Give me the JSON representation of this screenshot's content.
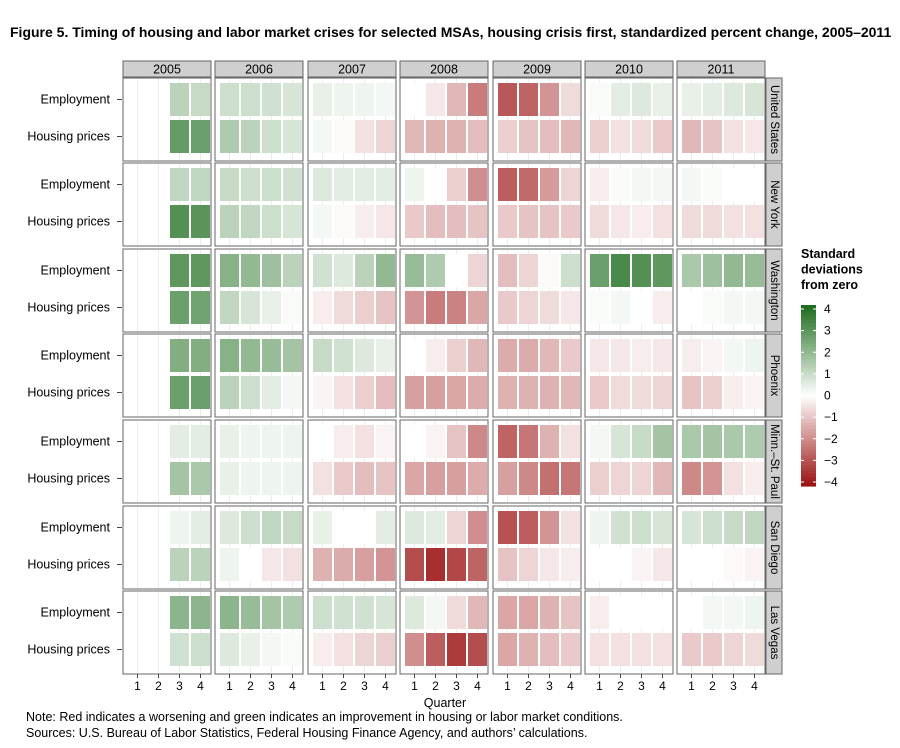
{
  "chart_data": {
    "type": "heatmap",
    "title": "Figure 5. Timing of housing and labor market crises for selected MSAs, housing crisis first, standardized percent change, 2005–2011",
    "xlabel": "Quarter",
    "years": [
      "2005",
      "2006",
      "2007",
      "2008",
      "2009",
      "2010",
      "2011"
    ],
    "quarters": [
      "1",
      "2",
      "3",
      "4"
    ],
    "rows": [
      "Employment",
      "Housing prices"
    ],
    "msas": [
      "United States",
      "New York",
      "Washington",
      "Phoenix",
      "Minn.–St. Paul",
      "San Diego",
      "Las Vegas"
    ],
    "legend": {
      "title_lines": [
        "Standard",
        "deviations",
        "from zero"
      ],
      "ticks": [
        "4",
        "3",
        "2",
        "1",
        "0",
        "−1",
        "−2",
        "−3",
        "−4"
      ],
      "range": [
        -4,
        4
      ],
      "colors": {
        "low": "#9b1111",
        "mid": "#ffffff",
        "high": "#1b6b1b"
      }
    },
    "data": {
      "United States": {
        "Employment": [
          null,
          null,
          1.2,
          1.0,
          0.9,
          0.9,
          0.8,
          0.7,
          0.4,
          0.3,
          0.3,
          0.2,
          0.0,
          -0.4,
          -1.2,
          -2.2,
          -2.8,
          -2.6,
          -1.8,
          -0.6,
          0.1,
          0.5,
          0.6,
          0.4,
          0.4,
          0.5,
          0.6,
          0.7
        ],
        "Housing prices": [
          null,
          null,
          2.7,
          2.6,
          1.4,
          1.2,
          0.9,
          0.7,
          0.2,
          -0.1,
          -0.5,
          -0.7,
          -1.2,
          -1.3,
          -1.3,
          -1.1,
          -0.8,
          -1.0,
          -1.1,
          -1.2,
          -0.8,
          -0.5,
          -0.6,
          -0.9,
          -1.2,
          -1.0,
          -0.5,
          -0.4
        ]
      },
      "New York": {
        "Employment": [
          null,
          null,
          1.1,
          1.1,
          1.0,
          0.9,
          0.9,
          0.8,
          0.6,
          0.5,
          0.5,
          0.5,
          0.3,
          0.0,
          -0.8,
          -1.9,
          -2.7,
          -2.5,
          -1.7,
          -0.7,
          -0.3,
          0.1,
          0.2,
          0.2,
          0.2,
          0.1,
          0.0,
          0.0
        ],
        "Housing prices": [
          null,
          null,
          3.0,
          2.9,
          1.2,
          1.1,
          0.9,
          0.7,
          0.2,
          -0.1,
          -0.3,
          -0.4,
          -0.9,
          -1.1,
          -1.1,
          -1.0,
          -0.9,
          -1.0,
          -1.0,
          -0.9,
          -0.6,
          -0.4,
          -0.3,
          -0.5,
          -0.6,
          -0.6,
          -0.5,
          -0.5
        ]
      },
      "Washington": {
        "Employment": [
          null,
          null,
          2.8,
          2.8,
          2.1,
          1.9,
          1.7,
          1.2,
          0.8,
          0.6,
          1.2,
          1.9,
          1.8,
          1.4,
          0.0,
          -0.7,
          -1.1,
          -0.7,
          -0.1,
          0.9,
          2.6,
          3.2,
          3.0,
          2.8,
          1.5,
          1.7,
          1.9,
          1.8
        ],
        "Housing prices": [
          null,
          null,
          2.6,
          2.5,
          1.1,
          0.7,
          0.4,
          0.1,
          -0.3,
          -0.6,
          -0.8,
          -1.0,
          -1.8,
          -2.2,
          -2.1,
          -1.5,
          -0.9,
          -0.7,
          -0.6,
          -0.4,
          0.1,
          0.2,
          0.0,
          -0.3,
          0.0,
          0.1,
          0.2,
          0.2
        ]
      },
      "Phoenix": {
        "Employment": [
          null,
          null,
          2.2,
          2.2,
          2.1,
          1.9,
          1.8,
          1.6,
          1.0,
          0.8,
          0.6,
          0.4,
          0.0,
          -0.3,
          -0.8,
          -1.2,
          -1.4,
          -1.4,
          -1.2,
          -0.9,
          -0.4,
          -0.4,
          -0.3,
          -0.4,
          -0.3,
          -0.2,
          0.2,
          0.3
        ],
        "Housing prices": [
          null,
          null,
          2.6,
          2.6,
          1.2,
          0.9,
          0.5,
          0.2,
          -0.2,
          -0.5,
          -0.8,
          -1.1,
          -1.6,
          -1.6,
          -1.5,
          -1.4,
          -1.3,
          -1.3,
          -1.3,
          -1.2,
          -0.9,
          -0.6,
          -0.6,
          -0.7,
          -1.0,
          -0.8,
          -0.3,
          -0.2
        ]
      },
      "Minn.–St. Paul": {
        "Employment": [
          null,
          null,
          0.5,
          0.5,
          0.4,
          0.3,
          0.3,
          0.3,
          0.0,
          -0.3,
          -0.5,
          -0.2,
          0.0,
          -0.2,
          -1.0,
          -2.0,
          -2.6,
          -2.3,
          -1.3,
          -0.5,
          0.2,
          0.7,
          1.0,
          1.6,
          1.5,
          1.6,
          1.5,
          1.4
        ],
        "Housing prices": [
          null,
          null,
          1.6,
          1.5,
          0.4,
          0.3,
          0.3,
          0.3,
          -0.5,
          -0.9,
          -1.1,
          -1.0,
          -1.5,
          -1.6,
          -1.6,
          -1.4,
          -1.6,
          -2.0,
          -2.4,
          -2.3,
          -0.8,
          -0.7,
          -0.7,
          -1.2,
          -2.0,
          -1.8,
          -0.5,
          -0.3
        ]
      },
      "San Diego": {
        "Employment": [
          null,
          null,
          0.3,
          0.5,
          0.6,
          0.9,
          1.1,
          1.0,
          0.4,
          0.0,
          0.0,
          0.5,
          0.6,
          0.5,
          -0.7,
          -1.9,
          -2.9,
          -2.7,
          -1.8,
          -0.5,
          0.3,
          0.8,
          0.9,
          0.7,
          0.7,
          0.9,
          1.0,
          1.1
        ],
        "Housing prices": [
          null,
          null,
          1.2,
          1.2,
          0.3,
          0.0,
          -0.4,
          -0.5,
          -1.3,
          -1.4,
          -1.6,
          -1.8,
          -3.0,
          -3.5,
          -3.1,
          -2.6,
          -1.0,
          -0.7,
          -0.4,
          -0.3,
          0.0,
          0.0,
          -0.2,
          -0.4,
          0.0,
          0.0,
          -0.1,
          -0.2
        ]
      },
      "Las Vegas": {
        "Employment": [
          null,
          null,
          2.0,
          2.0,
          2.0,
          1.8,
          1.6,
          1.4,
          0.9,
          0.8,
          0.8,
          0.7,
          0.6,
          0.2,
          -0.6,
          -1.2,
          -1.5,
          -1.5,
          -1.3,
          -1.0,
          -0.3,
          0.0,
          0.0,
          0.0,
          0.0,
          0.2,
          0.2,
          0.3
        ],
        "Housing prices": [
          null,
          null,
          0.8,
          0.9,
          0.6,
          0.4,
          0.2,
          0.1,
          -0.3,
          -0.5,
          -0.7,
          -0.8,
          -1.9,
          -2.7,
          -3.3,
          -3.0,
          -1.5,
          -1.3,
          -1.1,
          -0.9,
          -0.5,
          -0.5,
          -0.5,
          -0.5,
          -0.9,
          -0.9,
          -0.7,
          -0.6
        ]
      }
    }
  },
  "notes": {
    "note": "Note:  Red indicates a worsening and green indicates an improvement in housing or labor market conditions.",
    "sources": "Sources:  U.S. Bureau of Labor Statistics, Federal Housing Finance Agency, and authors’ calculations."
  }
}
